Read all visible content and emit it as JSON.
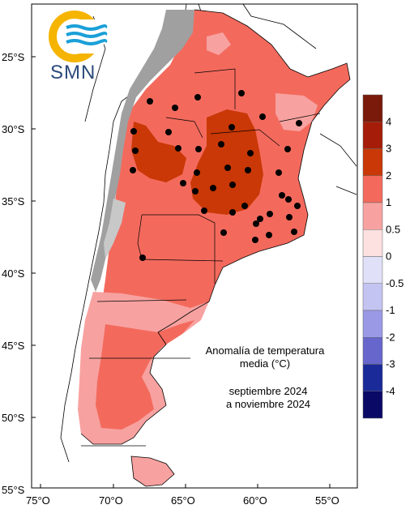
{
  "logo": {
    "text": "SMN",
    "colors": {
      "ring": "#f5b400",
      "waves": "#1aa0d8",
      "text": "#2b4a7a"
    }
  },
  "annotation": {
    "title_line1": "Anomalía de temperatura",
    "title_line2": "media (°C)",
    "period_line1": "septiembre 2024",
    "period_line2": "a noviembre 2024"
  },
  "axes": {
    "lat_labels": [
      "25°S",
      "30°S",
      "35°S",
      "40°S",
      "45°S",
      "50°S",
      "55°S"
    ],
    "lon_labels": [
      "75°O",
      "70°O",
      "65°O",
      "60°O",
      "55°O"
    ]
  },
  "legend": {
    "labels": [
      "4",
      "3",
      "2",
      "1",
      "0.5",
      "0",
      "-0.5",
      "-1",
      "-2",
      "-3",
      "-4"
    ],
    "colors": [
      "#7a1a0a",
      "#a51d08",
      "#c93806",
      "#f36a5d",
      "#f7a2a0",
      "#fde0e0",
      "#e0e0f8",
      "#c4c4f2",
      "#9999e6",
      "#6666cc",
      "#1a2a99",
      "#0a0a66"
    ]
  },
  "chart_data": {
    "type": "map",
    "x_range": [
      -75,
      -53
    ],
    "y_range": [
      -55,
      -22
    ],
    "value_colors": {
      "range_0_5_to_1": "#f7a2a0",
      "range_1_to_2": "#f36a5d",
      "range_2_to_3": "#c93806",
      "terrain_high": "#a0a0a0"
    }
  }
}
